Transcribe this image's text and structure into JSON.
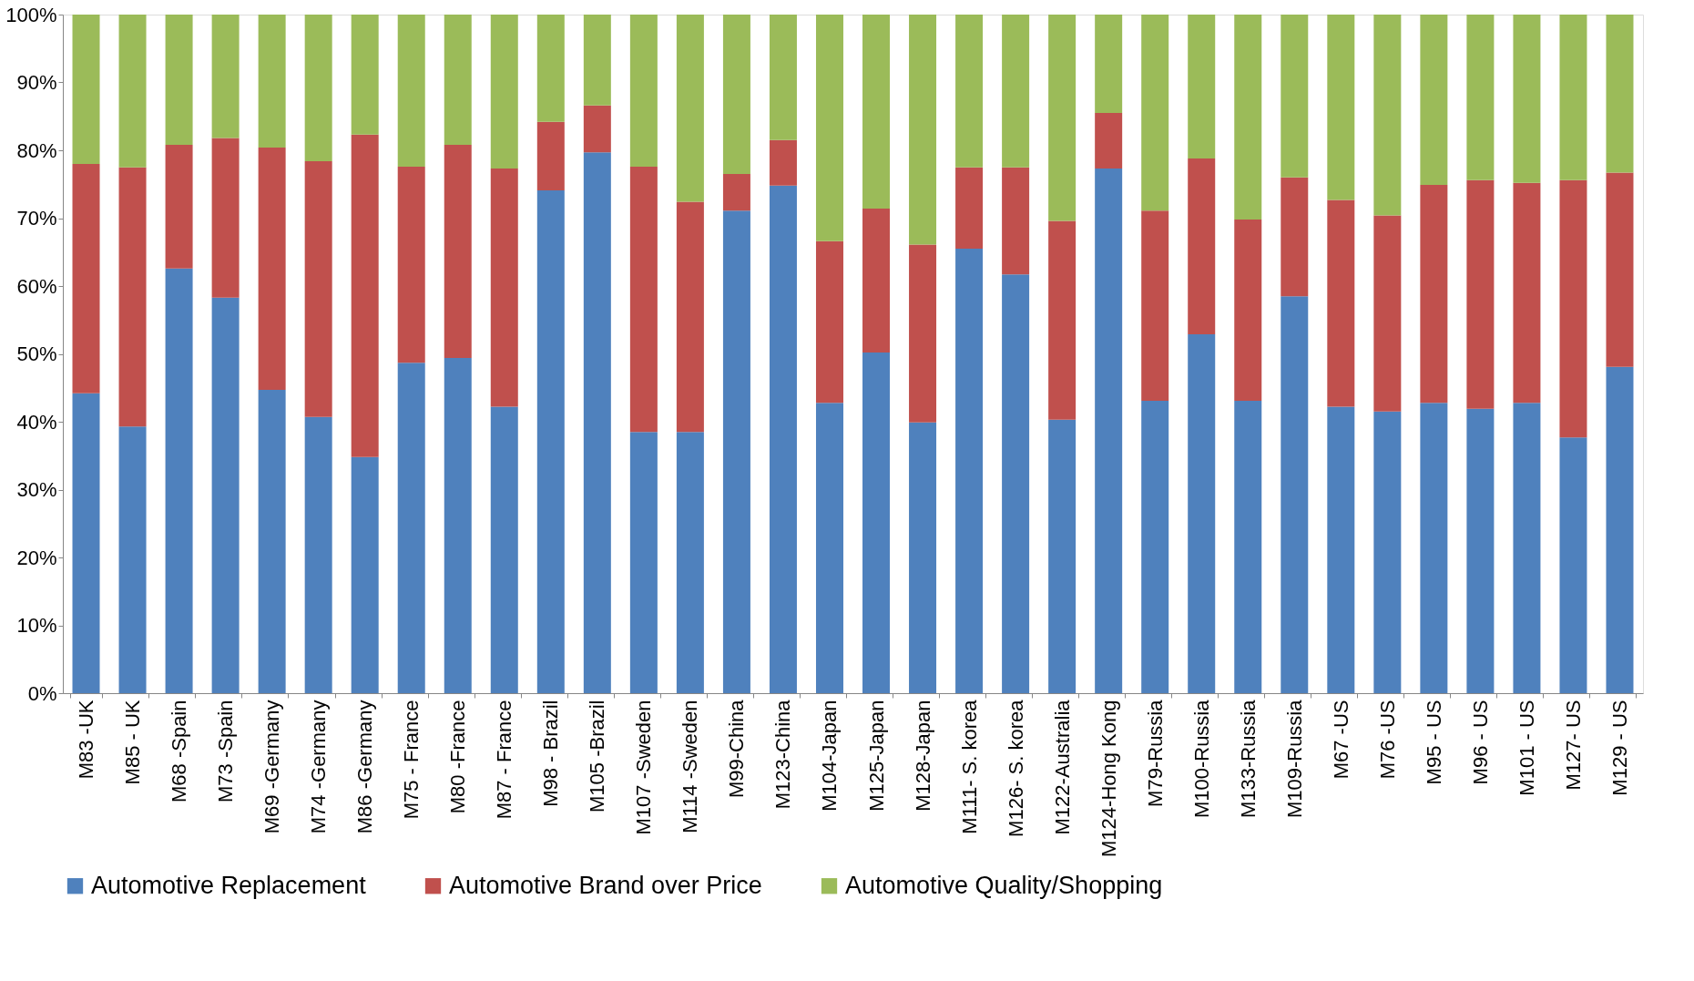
{
  "chart_data": {
    "type": "bar",
    "stacked": true,
    "categories": [
      "M83 -UK",
      "M85 - UK",
      "M68 -Spain",
      "M73 -Spain",
      "M69 -Germany",
      "M74 -Germany",
      "M86 -Germany",
      "M75 - France",
      "M80 -France",
      "M87 - France",
      "M98 - Brazil",
      "M105 -Brazil",
      "M107 -Sweden",
      "M114 -Sweden",
      "M99-China",
      "M123-China",
      "M104-Japan",
      "M125-Japan",
      "M128-Japan",
      "M111- S. korea",
      "M126- S. korea",
      "M122-Australia",
      "M124-Hong Kong",
      "M79-Russia",
      "M100-Russia",
      "M133-Russia",
      "M109-Russia",
      "M67 -US",
      "M76 -US",
      "M95 - US",
      "M96 - US",
      "M101 - US",
      "M127- US",
      "M129 - US"
    ],
    "series": [
      {
        "name": "Automotive Replacement",
        "color": "#4f81bd",
        "values": [
          44.2,
          39.3,
          62.6,
          58.3,
          44.7,
          40.7,
          34.8,
          48.7,
          49.4,
          42.2,
          74.1,
          79.7,
          38.5,
          38.5,
          71.1,
          74.8,
          42.8,
          50.2,
          39.9,
          65.5,
          61.7,
          40.3,
          77.3,
          43.1,
          52.9,
          43.1,
          58.5,
          42.2,
          41.5,
          42.8,
          41.9,
          42.8,
          37.7,
          48.1
        ]
      },
      {
        "name": "Automotive Brand over Price",
        "color": "#c0504d",
        "values": [
          33.8,
          38.2,
          18.2,
          23.5,
          35.7,
          37.7,
          47.5,
          28.9,
          31.4,
          35.1,
          10.1,
          6.9,
          39.1,
          33.9,
          5.4,
          6.7,
          23.8,
          21.2,
          26.2,
          12.0,
          15.8,
          29.3,
          8.2,
          28.0,
          25.9,
          26.7,
          17.5,
          30.5,
          28.9,
          32.1,
          33.7,
          32.4,
          37.9,
          28.6
        ]
      },
      {
        "name": "Automotive Quality/Shopping",
        "color": "#9bbb59",
        "values": [
          22.0,
          22.5,
          19.2,
          18.2,
          19.6,
          21.6,
          17.7,
          22.4,
          19.2,
          22.7,
          15.8,
          13.4,
          22.4,
          27.6,
          23.5,
          18.5,
          33.4,
          28.6,
          33.9,
          22.5,
          22.5,
          30.4,
          14.5,
          28.9,
          21.2,
          30.2,
          24.0,
          27.3,
          29.6,
          25.1,
          24.4,
          24.8,
          24.4,
          23.3
        ]
      }
    ],
    "ylim": [
      0,
      100
    ],
    "yticks": [
      {
        "value": 0,
        "label": "0%"
      },
      {
        "value": 10,
        "label": "10%"
      },
      {
        "value": 20,
        "label": "20%"
      },
      {
        "value": 30,
        "label": "30%"
      },
      {
        "value": 40,
        "label": "40%"
      },
      {
        "value": 50,
        "label": "50%"
      },
      {
        "value": 60,
        "label": "60%"
      },
      {
        "value": 70,
        "label": "70%"
      },
      {
        "value": 80,
        "label": "80%"
      },
      {
        "value": 90,
        "label": "90%"
      },
      {
        "value": 100,
        "label": "100%"
      }
    ],
    "grid": false,
    "legend": "bottom"
  }
}
